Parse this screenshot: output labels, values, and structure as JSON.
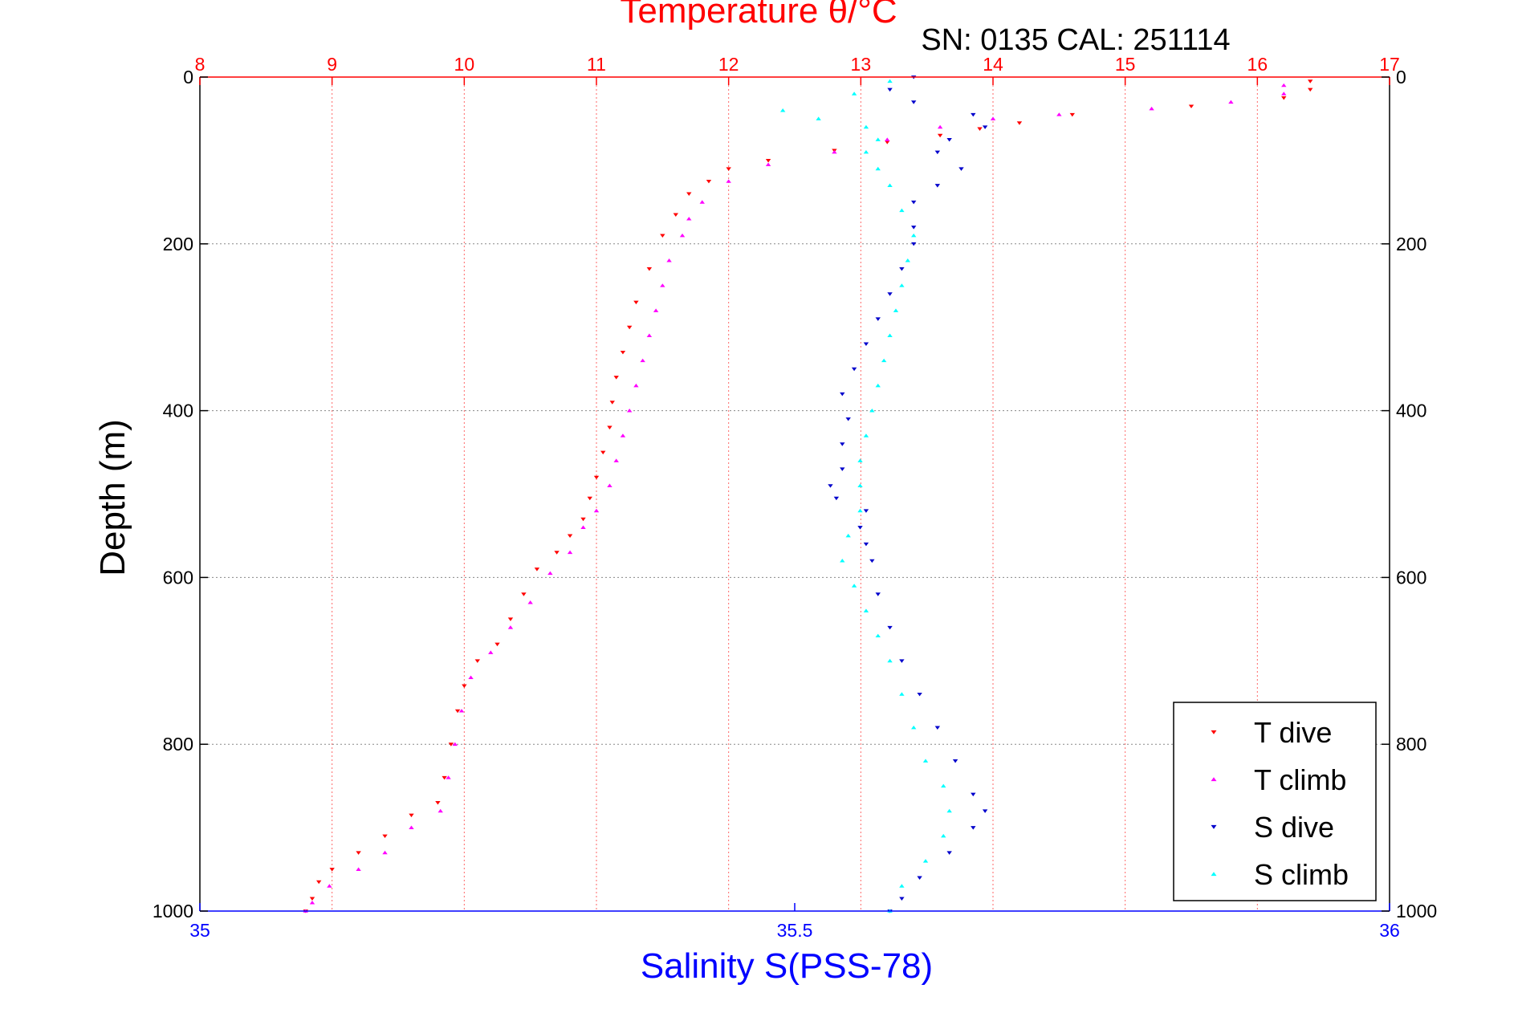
{
  "chart_data": {
    "type": "scatter",
    "title": "Temperature θ/°C",
    "subtitle": "SN: 0135  CAL: 251114",
    "ylabel": "Depth (m)",
    "x2label": "Salinity S(PSS-78)",
    "ylim": [
      0,
      1000
    ],
    "y_reversed": true,
    "temperature_axis": {
      "range": [
        8,
        17
      ],
      "ticks": [
        "8",
        "9",
        "10",
        "11",
        "12",
        "13",
        "14",
        "15",
        "16",
        "17"
      ]
    },
    "salinity_axis": {
      "range": [
        35,
        36
      ],
      "ticks": [
        "35",
        "35.5",
        "36"
      ]
    },
    "depth_ticks": [
      "0",
      "200",
      "400",
      "600",
      "800",
      "1000"
    ],
    "grid": true,
    "legend": {
      "position": "bottom-right",
      "entries": [
        "T dive",
        "T climb",
        "S dive",
        "S climb"
      ]
    },
    "series": [
      {
        "name": "T dive",
        "axis": "temperature",
        "marker": "triangle-down",
        "points": [
          [
            16.4,
            5
          ],
          [
            16.4,
            15
          ],
          [
            16.2,
            25
          ],
          [
            15.5,
            35
          ],
          [
            14.6,
            45
          ],
          [
            14.2,
            55
          ],
          [
            13.9,
            62
          ],
          [
            13.6,
            70
          ],
          [
            13.2,
            78
          ],
          [
            12.8,
            88
          ],
          [
            12.3,
            100
          ],
          [
            12.0,
            110
          ],
          [
            11.85,
            125
          ],
          [
            11.7,
            140
          ],
          [
            11.6,
            165
          ],
          [
            11.5,
            190
          ],
          [
            11.4,
            230
          ],
          [
            11.3,
            270
          ],
          [
            11.25,
            300
          ],
          [
            11.2,
            330
          ],
          [
            11.15,
            360
          ],
          [
            11.12,
            390
          ],
          [
            11.1,
            420
          ],
          [
            11.05,
            450
          ],
          [
            11.0,
            480
          ],
          [
            10.95,
            505
          ],
          [
            10.9,
            530
          ],
          [
            10.8,
            550
          ],
          [
            10.7,
            570
          ],
          [
            10.55,
            590
          ],
          [
            10.45,
            620
          ],
          [
            10.35,
            650
          ],
          [
            10.25,
            680
          ],
          [
            10.1,
            700
          ],
          [
            10.0,
            730
          ],
          [
            9.95,
            760
          ],
          [
            9.9,
            800
          ],
          [
            9.85,
            840
          ],
          [
            9.8,
            870
          ],
          [
            9.6,
            885
          ],
          [
            9.4,
            910
          ],
          [
            9.2,
            930
          ],
          [
            9.0,
            950
          ],
          [
            8.9,
            965
          ],
          [
            8.85,
            985
          ],
          [
            8.8,
            1000
          ]
        ]
      },
      {
        "name": "T climb",
        "axis": "temperature",
        "marker": "triangle-up",
        "points": [
          [
            16.2,
            10
          ],
          [
            16.2,
            20
          ],
          [
            15.8,
            30
          ],
          [
            15.2,
            38
          ],
          [
            14.5,
            45
          ],
          [
            14.0,
            50
          ],
          [
            13.6,
            60
          ],
          [
            13.2,
            75
          ],
          [
            12.8,
            90
          ],
          [
            12.3,
            105
          ],
          [
            12.0,
            125
          ],
          [
            11.8,
            150
          ],
          [
            11.7,
            170
          ],
          [
            11.65,
            190
          ],
          [
            11.55,
            220
          ],
          [
            11.5,
            250
          ],
          [
            11.45,
            280
          ],
          [
            11.4,
            310
          ],
          [
            11.35,
            340
          ],
          [
            11.3,
            370
          ],
          [
            11.25,
            400
          ],
          [
            11.2,
            430
          ],
          [
            11.15,
            460
          ],
          [
            11.1,
            490
          ],
          [
            11.0,
            520
          ],
          [
            10.9,
            540
          ],
          [
            10.8,
            570
          ],
          [
            10.65,
            595
          ],
          [
            10.5,
            630
          ],
          [
            10.35,
            660
          ],
          [
            10.2,
            690
          ],
          [
            10.05,
            720
          ],
          [
            9.98,
            760
          ],
          [
            9.93,
            800
          ],
          [
            9.88,
            840
          ],
          [
            9.82,
            880
          ],
          [
            9.6,
            900
          ],
          [
            9.4,
            930
          ],
          [
            9.2,
            950
          ],
          [
            8.98,
            970
          ],
          [
            8.85,
            990
          ],
          [
            8.8,
            1000
          ]
        ]
      },
      {
        "name": "S dive",
        "axis": "salinity",
        "marker": "triangle-down",
        "points": [
          [
            35.6,
            0
          ],
          [
            35.58,
            15
          ],
          [
            35.6,
            30
          ],
          [
            35.65,
            45
          ],
          [
            35.66,
            60
          ],
          [
            35.63,
            75
          ],
          [
            35.62,
            90
          ],
          [
            35.64,
            110
          ],
          [
            35.62,
            130
          ],
          [
            35.6,
            150
          ],
          [
            35.6,
            180
          ],
          [
            35.6,
            200
          ],
          [
            35.59,
            230
          ],
          [
            35.58,
            260
          ],
          [
            35.57,
            290
          ],
          [
            35.56,
            320
          ],
          [
            35.55,
            350
          ],
          [
            35.54,
            380
          ],
          [
            35.545,
            410
          ],
          [
            35.54,
            440
          ],
          [
            35.54,
            470
          ],
          [
            35.53,
            490
          ],
          [
            35.535,
            505
          ],
          [
            35.56,
            520
          ],
          [
            35.555,
            540
          ],
          [
            35.56,
            560
          ],
          [
            35.565,
            580
          ],
          [
            35.57,
            620
          ],
          [
            35.58,
            660
          ],
          [
            35.59,
            700
          ],
          [
            35.605,
            740
          ],
          [
            35.62,
            780
          ],
          [
            35.635,
            820
          ],
          [
            35.65,
            860
          ],
          [
            35.66,
            880
          ],
          [
            35.65,
            900
          ],
          [
            35.63,
            930
          ],
          [
            35.605,
            960
          ],
          [
            35.59,
            985
          ],
          [
            35.58,
            1000
          ]
        ]
      },
      {
        "name": "S climb",
        "axis": "salinity",
        "marker": "triangle-up",
        "points": [
          [
            35.58,
            5
          ],
          [
            35.55,
            20
          ],
          [
            35.49,
            40
          ],
          [
            35.52,
            50
          ],
          [
            35.56,
            60
          ],
          [
            35.57,
            75
          ],
          [
            35.56,
            90
          ],
          [
            35.57,
            110
          ],
          [
            35.58,
            130
          ],
          [
            35.59,
            160
          ],
          [
            35.6,
            190
          ],
          [
            35.595,
            220
          ],
          [
            35.59,
            250
          ],
          [
            35.585,
            280
          ],
          [
            35.58,
            310
          ],
          [
            35.575,
            340
          ],
          [
            35.57,
            370
          ],
          [
            35.565,
            400
          ],
          [
            35.56,
            430
          ],
          [
            35.555,
            460
          ],
          [
            35.555,
            490
          ],
          [
            35.555,
            520
          ],
          [
            35.545,
            550
          ],
          [
            35.54,
            580
          ],
          [
            35.55,
            610
          ],
          [
            35.56,
            640
          ],
          [
            35.57,
            670
          ],
          [
            35.58,
            700
          ],
          [
            35.59,
            740
          ],
          [
            35.6,
            780
          ],
          [
            35.61,
            820
          ],
          [
            35.625,
            850
          ],
          [
            35.63,
            880
          ],
          [
            35.625,
            910
          ],
          [
            35.61,
            940
          ],
          [
            35.59,
            970
          ],
          [
            35.58,
            1000
          ]
        ]
      }
    ]
  },
  "colors": {
    "T dive": "#ff0000",
    "T climb": "#ff00ff",
    "S dive": "#0000cc",
    "S climb": "#00ffff",
    "temperature_axis": "#ff0000",
    "salinity_axis": "#0000ff",
    "frame": "#000000"
  }
}
